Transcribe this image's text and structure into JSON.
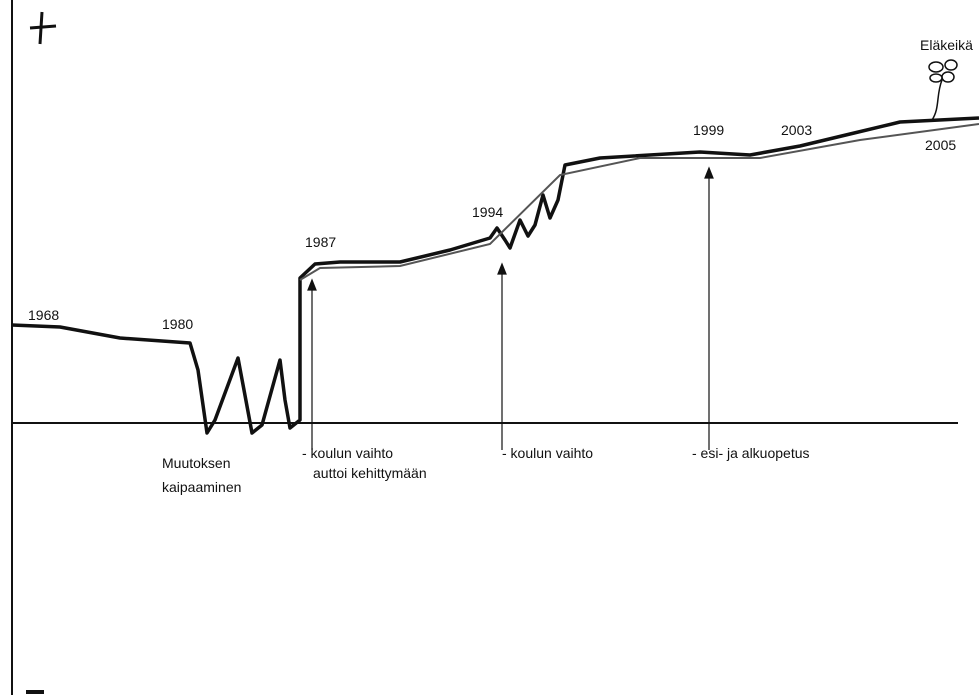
{
  "years": [
    "1968",
    "1980",
    "1987",
    "1994",
    "1999",
    "2003",
    "2005"
  ],
  "retirement_label": "Eläkeikä",
  "annotations": [
    {
      "lines": [
        "Muutoksen",
        "kaipaaminen"
      ]
    },
    {
      "lines": [
        "- koulun vaihto",
        "auttoi kehittymään"
      ]
    },
    {
      "lines": [
        "- koulun vaihto"
      ]
    },
    {
      "lines": [
        "- esi- ja alkuopetus"
      ]
    }
  ]
}
